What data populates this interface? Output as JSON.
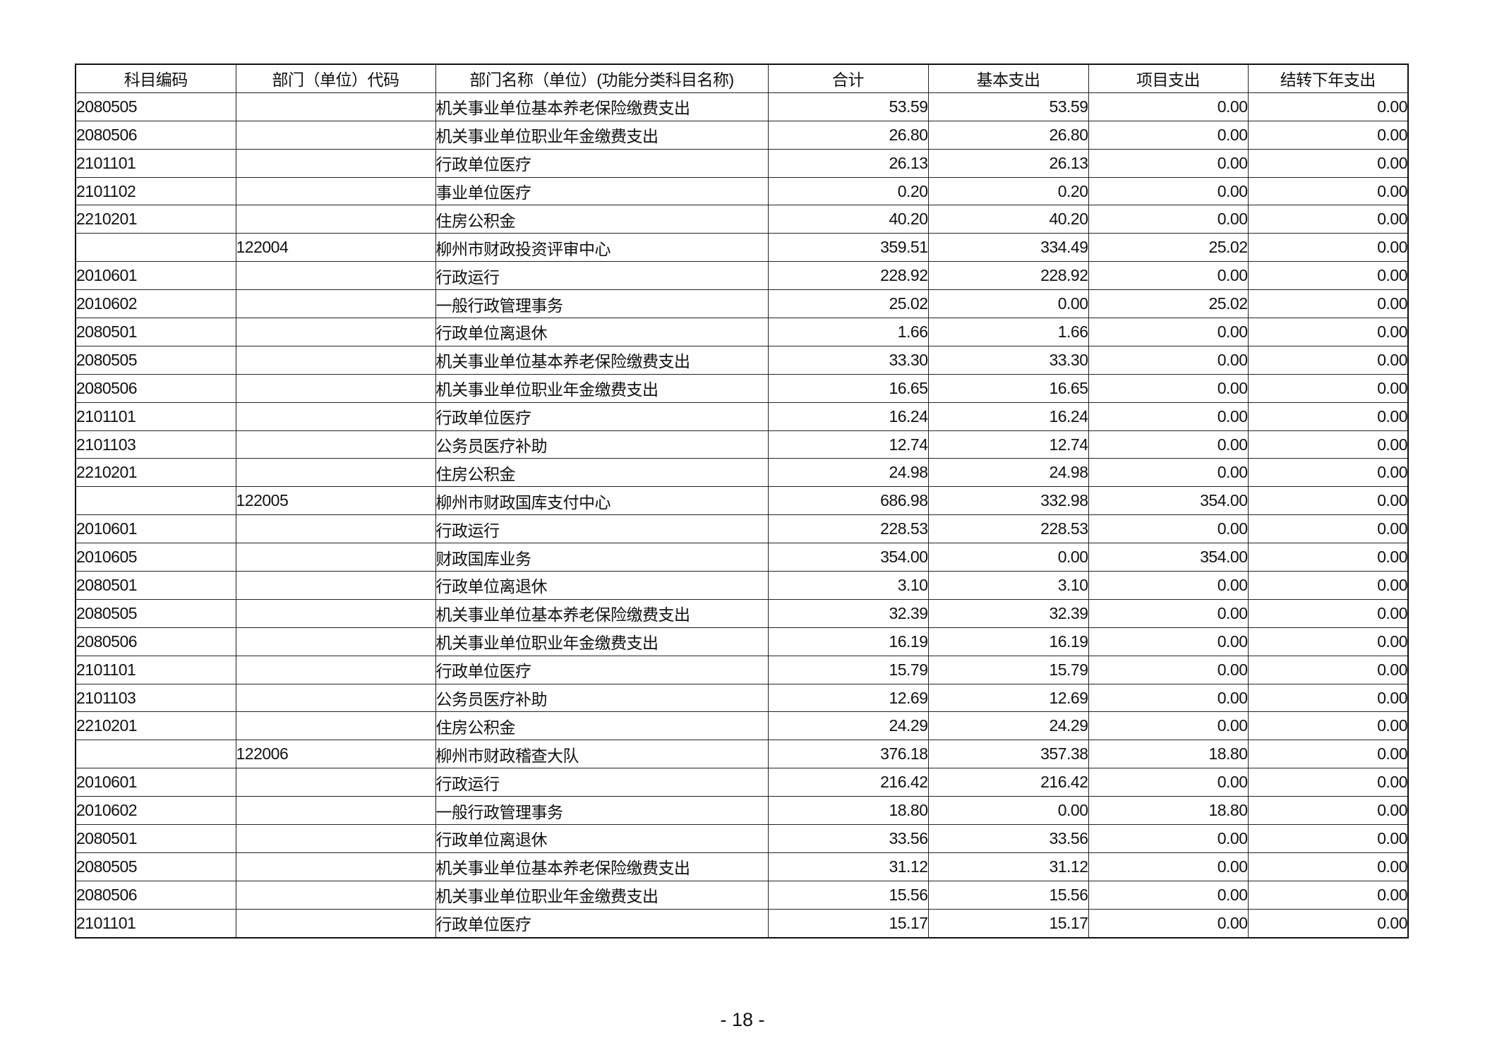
{
  "table": {
    "headers": [
      "科目编码",
      "部门（单位）代码",
      "部门名称（单位）(功能分类科目名称)",
      "合计",
      "基本支出",
      "项目支出",
      "结转下年支出"
    ],
    "rows": [
      [
        "2080505",
        "",
        "机关事业单位基本养老保险缴费支出",
        "53.59",
        "53.59",
        "0.00",
        "0.00"
      ],
      [
        "2080506",
        "",
        "机关事业单位职业年金缴费支出",
        "26.80",
        "26.80",
        "0.00",
        "0.00"
      ],
      [
        "2101101",
        "",
        "行政单位医疗",
        "26.13",
        "26.13",
        "0.00",
        "0.00"
      ],
      [
        "2101102",
        "",
        "事业单位医疗",
        "0.20",
        "0.20",
        "0.00",
        "0.00"
      ],
      [
        "2210201",
        "",
        "住房公积金",
        "40.20",
        "40.20",
        "0.00",
        "0.00"
      ],
      [
        "",
        "122004",
        "柳州市财政投资评审中心",
        "359.51",
        "334.49",
        "25.02",
        "0.00"
      ],
      [
        "2010601",
        "",
        "行政运行",
        "228.92",
        "228.92",
        "0.00",
        "0.00"
      ],
      [
        "2010602",
        "",
        "一般行政管理事务",
        "25.02",
        "0.00",
        "25.02",
        "0.00"
      ],
      [
        "2080501",
        "",
        "行政单位离退休",
        "1.66",
        "1.66",
        "0.00",
        "0.00"
      ],
      [
        "2080505",
        "",
        "机关事业单位基本养老保险缴费支出",
        "33.30",
        "33.30",
        "0.00",
        "0.00"
      ],
      [
        "2080506",
        "",
        "机关事业单位职业年金缴费支出",
        "16.65",
        "16.65",
        "0.00",
        "0.00"
      ],
      [
        "2101101",
        "",
        "行政单位医疗",
        "16.24",
        "16.24",
        "0.00",
        "0.00"
      ],
      [
        "2101103",
        "",
        "公务员医疗补助",
        "12.74",
        "12.74",
        "0.00",
        "0.00"
      ],
      [
        "2210201",
        "",
        "住房公积金",
        "24.98",
        "24.98",
        "0.00",
        "0.00"
      ],
      [
        "",
        "122005",
        "柳州市财政国库支付中心",
        "686.98",
        "332.98",
        "354.00",
        "0.00"
      ],
      [
        "2010601",
        "",
        "行政运行",
        "228.53",
        "228.53",
        "0.00",
        "0.00"
      ],
      [
        "2010605",
        "",
        "财政国库业务",
        "354.00",
        "0.00",
        "354.00",
        "0.00"
      ],
      [
        "2080501",
        "",
        "行政单位离退休",
        "3.10",
        "3.10",
        "0.00",
        "0.00"
      ],
      [
        "2080505",
        "",
        "机关事业单位基本养老保险缴费支出",
        "32.39",
        "32.39",
        "0.00",
        "0.00"
      ],
      [
        "2080506",
        "",
        "机关事业单位职业年金缴费支出",
        "16.19",
        "16.19",
        "0.00",
        "0.00"
      ],
      [
        "2101101",
        "",
        "行政单位医疗",
        "15.79",
        "15.79",
        "0.00",
        "0.00"
      ],
      [
        "2101103",
        "",
        "公务员医疗补助",
        "12.69",
        "12.69",
        "0.00",
        "0.00"
      ],
      [
        "2210201",
        "",
        "住房公积金",
        "24.29",
        "24.29",
        "0.00",
        "0.00"
      ],
      [
        "",
        "122006",
        "柳州市财政稽查大队",
        "376.18",
        "357.38",
        "18.80",
        "0.00"
      ],
      [
        "2010601",
        "",
        "行政运行",
        "216.42",
        "216.42",
        "0.00",
        "0.00"
      ],
      [
        "2010602",
        "",
        "一般行政管理事务",
        "18.80",
        "0.00",
        "18.80",
        "0.00"
      ],
      [
        "2080501",
        "",
        "行政单位离退休",
        "33.56",
        "33.56",
        "0.00",
        "0.00"
      ],
      [
        "2080505",
        "",
        "机关事业单位基本养老保险缴费支出",
        "31.12",
        "31.12",
        "0.00",
        "0.00"
      ],
      [
        "2080506",
        "",
        "机关事业单位职业年金缴费支出",
        "15.56",
        "15.56",
        "0.00",
        "0.00"
      ],
      [
        "2101101",
        "",
        "行政单位医疗",
        "15.17",
        "15.17",
        "0.00",
        "0.00"
      ]
    ]
  },
  "footer": {
    "page_number": "- 18 -"
  }
}
